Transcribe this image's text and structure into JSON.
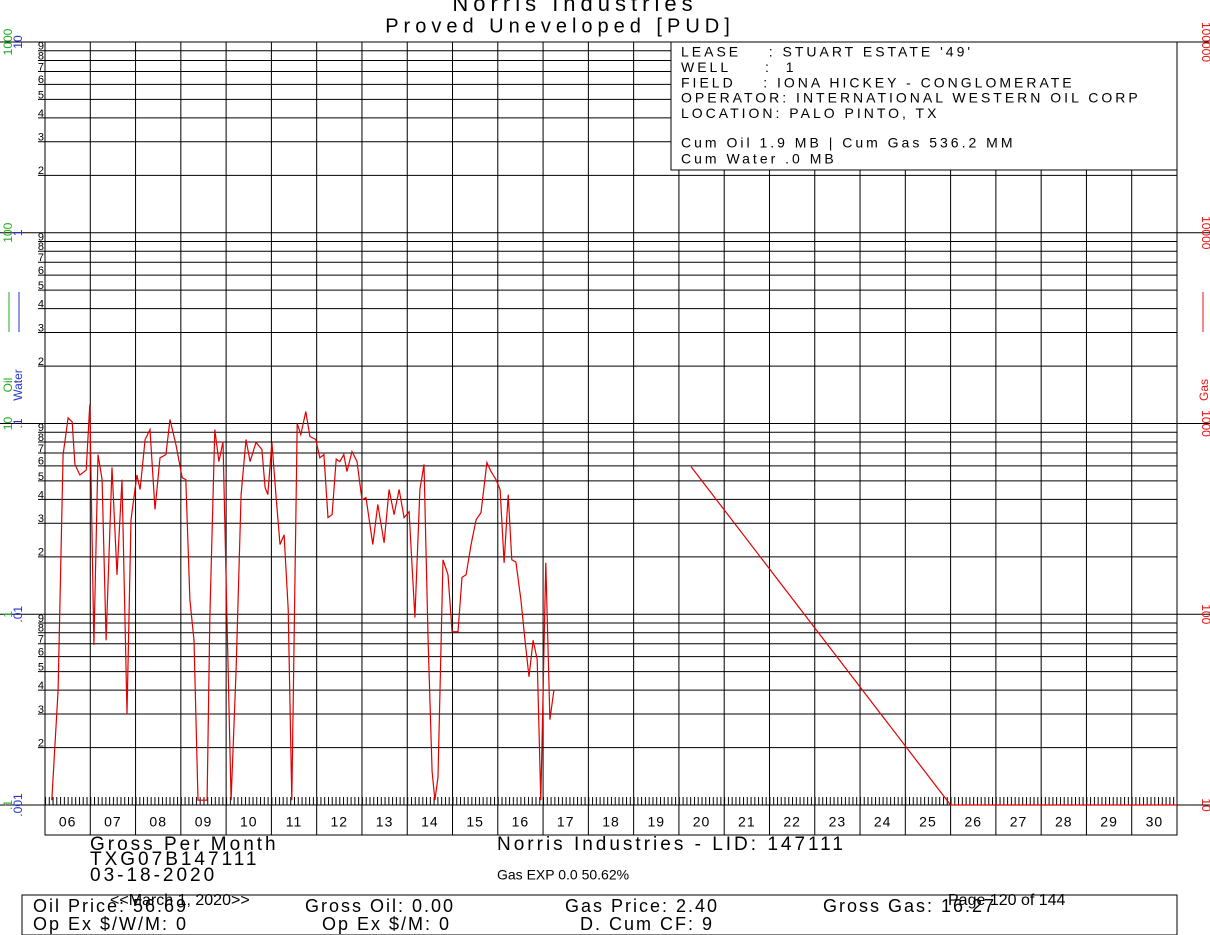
{
  "chart_data": {
    "type": "line",
    "title": "Norris Industries",
    "subtitle": "Proved Uneveloped [PUD]",
    "xlim": [
      6,
      31
    ],
    "xticks": [
      {
        "value": 6,
        "label": "06"
      },
      {
        "value": 7,
        "label": "07"
      },
      {
        "value": 8,
        "label": "08"
      },
      {
        "value": 9,
        "label": "09"
      },
      10,
      11,
      12,
      13,
      14,
      15,
      16,
      17,
      18,
      19,
      20,
      21,
      22,
      23,
      24,
      25,
      26,
      27,
      28,
      29,
      30
    ],
    "ylim": [
      10,
      100000
    ],
    "yticks": [
      10,
      100,
      1000,
      10000,
      100000
    ],
    "log_y": true,
    "grid": true,
    "minor_ticks": [
      2,
      3,
      4,
      5,
      6,
      7,
      8,
      9
    ],
    "y_axis_label": "Gas",
    "y_axis_color": "#ee1111",
    "oil_axis": {
      "label": "Oil",
      "color": "#22aa22",
      "ylim": [
        0.1,
        1000
      ],
      "ticks": [
        {
          "value": 0.1,
          "label": ".1"
        },
        1,
        10,
        100,
        1000
      ]
    },
    "water_axis": {
      "label": "Water",
      "color": "#2233cc",
      "ylim": [
        0.001,
        10
      ],
      "ticks": [
        {
          "value": 0.001,
          "label": ".001"
        },
        {
          "value": 0.01,
          "label": ".01"
        },
        {
          "value": 0.1,
          "label": ".1"
        },
        1,
        10
      ]
    },
    "series": [
      {
        "color": "#e00000",
        "x": [
          6.15,
          6.29,
          6.4,
          6.51,
          6.6,
          6.66,
          6.77,
          6.91,
          6.99,
          7.08,
          7.17,
          7.26,
          7.35,
          7.48,
          7.59,
          7.7,
          7.81,
          7.9,
          8.03,
          8.1,
          8.21,
          8.32,
          8.43,
          8.54,
          8.67,
          8.76,
          8.89,
          9.03,
          9.11,
          9.2,
          9.29,
          9.38,
          9.58,
          9.64,
          9.75,
          9.84,
          9.93,
          10.02,
          10.11,
          10.22,
          10.33,
          10.44,
          10.53,
          10.66,
          10.79,
          10.86,
          10.92,
          11.01,
          11.1,
          11.19,
          11.28,
          11.37,
          11.45,
          11.57,
          11.65,
          11.76,
          11.85,
          11.98,
          12.07,
          12.16,
          12.25,
          12.34,
          12.43,
          12.51,
          12.6,
          12.67,
          12.78,
          12.89,
          13.0,
          13.09,
          13.24,
          13.35,
          13.49,
          13.6,
          13.71,
          13.82,
          13.93,
          14.04,
          14.17,
          14.28,
          14.37,
          14.46,
          14.55,
          14.61,
          14.68,
          14.79,
          14.9,
          14.99,
          15.12,
          15.21,
          15.3,
          15.41,
          15.52,
          15.63,
          15.76,
          15.85,
          15.96,
          16.05,
          16.14,
          16.23,
          16.31,
          16.4,
          16.51,
          16.6,
          16.69,
          16.78,
          16.87,
          16.95,
          17.06,
          17.15,
          17.24
        ],
        "values": [
          10.6,
          40,
          687,
          1070,
          1020,
          610,
          537,
          570,
          1260,
          69,
          687,
          508,
          73,
          589,
          161,
          508,
          30,
          313,
          537,
          451,
          824,
          929,
          354,
          661,
          687,
          1050,
          776,
          520,
          508,
          119,
          73,
          10.6,
          10.6,
          94,
          929,
          631,
          804,
          94,
          10.6,
          51,
          424,
          824,
          631,
          796,
          731,
          461,
          424,
          796,
          424,
          232,
          261,
          106,
          10.6,
          1000,
          875,
          1156,
          855,
          824,
          661,
          687,
          321,
          333,
          651,
          631,
          687,
          560,
          713,
          631,
          398,
          409,
          232,
          376,
          237,
          451,
          333,
          451,
          321,
          345,
          96,
          451,
          610,
          73,
          15,
          10.6,
          14,
          193,
          161,
          81,
          81,
          156,
          161,
          232,
          313,
          341,
          624,
          560,
          508,
          451,
          186,
          424,
          193,
          188,
          119,
          73,
          47,
          73,
          58,
          10.6,
          186,
          28,
          40
        ]
      },
      {
        "color": "#e00000",
        "x": [
          20.27,
          26.0,
          31.0
        ],
        "values": [
          594,
          10,
          10
        ]
      }
    ]
  },
  "info_box": {
    "lines": [
      "LEASE    : STUART ESTATE '49'",
      "WELL     :  1",
      "FIELD    : IONA HICKEY - CONGLOMERATE",
      "OPERATOR: INTERNATIONAL WESTERN OIL CORP",
      "LOCATION: PALO PINTO, TX"
    ],
    "cum_lines": [
      "Cum Oil 1.9 MB | Cum Gas 536.2 MM",
      "Cum Water .0 MB"
    ]
  },
  "footer": {
    "report": "Gross Per Month",
    "code": "TXG07B147111",
    "date": "03-18-2020",
    "company_lid": "Norris Industries - LID: 147111",
    "gas_exp": "Gas EXP 0.0 50.62%",
    "row1": [
      "Oil Price: 56.69",
      "Gross Oil: 0.00",
      "Gas Price: 2.40",
      "Gross Gas: 16.27"
    ],
    "row2": [
      "Op Ex $/W/M: 0",
      "Op Ex $/M: 0",
      "D. Cum CF: 9"
    ]
  },
  "overlay": {
    "date_nav": "<<March 1, 2020>>",
    "page": "Page 120 of 144"
  }
}
